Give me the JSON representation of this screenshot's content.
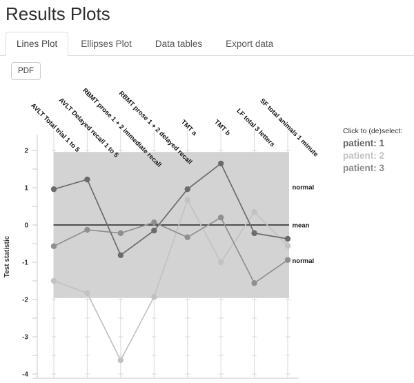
{
  "page": {
    "title": "Results Plots"
  },
  "tabs": [
    {
      "label": "Lines Plot",
      "active": true
    },
    {
      "label": "Ellipses Plot",
      "active": false
    },
    {
      "label": "Data tables",
      "active": false
    },
    {
      "label": "Export data",
      "active": false
    }
  ],
  "toolbar": {
    "pdf_label": "PDF"
  },
  "legend": {
    "title": "Click to (de)select:",
    "items": [
      {
        "label": "patient: 1",
        "color": "#666666"
      },
      {
        "label": "patient: 2",
        "color": "#c2c2c2"
      },
      {
        "label": "patient: 3",
        "color": "#8a8a8a"
      }
    ]
  },
  "chart_data": {
    "type": "line",
    "title": "",
    "xlabel": "",
    "ylabel": "Test statistic",
    "legend_position": "right",
    "categories": [
      "AVLT Total trial 1 to 5",
      "AVLT Delayed recall 1 to 5",
      "RBMT prose 1 + 2 immediate recall",
      "RBMT prose 1 + 2 delayed recall",
      "TMT a",
      "TMT b",
      "LF total 3 letters",
      "SF total animals 1 minute"
    ],
    "series": [
      {
        "name": "patient: 1",
        "color": "#6b6b6b",
        "values": [
          0.96,
          1.22,
          -0.81,
          -0.15,
          0.96,
          1.65,
          -0.22,
          -0.37
        ]
      },
      {
        "name": "patient: 2",
        "color": "#c2c2c2",
        "values": [
          -1.5,
          -1.83,
          -3.63,
          -1.93,
          0.67,
          -1.0,
          0.35,
          -0.56
        ]
      },
      {
        "name": "patient: 3",
        "color": "#8f8f8f",
        "values": [
          -0.57,
          -0.13,
          -0.22,
          0.07,
          -0.33,
          0.2,
          -1.56,
          -0.94
        ]
      }
    ],
    "yticks": [
      2,
      1,
      0,
      -1,
      -2,
      -3,
      -4
    ],
    "ylim": [
      -4.1,
      2.4
    ],
    "grid": true,
    "normal_band": {
      "from": -1.96,
      "to": 1.96,
      "color": "#d3d3d3"
    },
    "mean_line": 0,
    "annotations": [
      {
        "text": "normal",
        "y": 1.02
      },
      {
        "text": "mean",
        "y": 0.0
      },
      {
        "text": "normal",
        "y": -0.95
      }
    ]
  }
}
